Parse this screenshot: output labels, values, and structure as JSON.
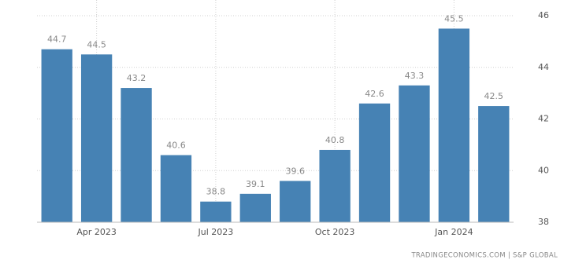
{
  "chart_data": {
    "type": "bar",
    "categories": [
      null,
      "Apr 2023",
      null,
      null,
      "Jul 2023",
      null,
      null,
      "Oct 2023",
      null,
      null,
      "Jan 2024",
      null
    ],
    "values": [
      44.7,
      44.5,
      43.2,
      40.6,
      38.8,
      39.1,
      39.6,
      40.8,
      42.6,
      43.3,
      45.5,
      42.5
    ],
    "color": "#4682b4",
    "ylim": [
      38,
      46
    ],
    "yticks": [
      38,
      40,
      42,
      44,
      46
    ],
    "grid": true,
    "source": "TRADINGECONOMICS.COM | S&P GLOBAL"
  }
}
